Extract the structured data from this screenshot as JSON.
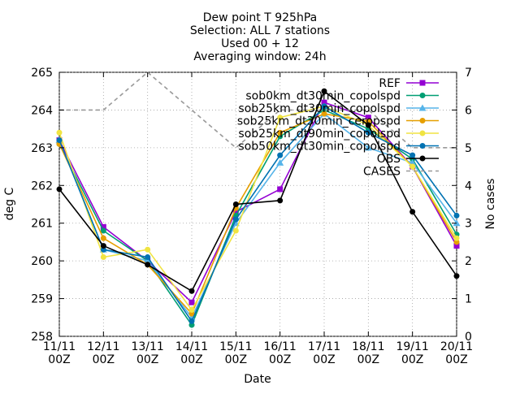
{
  "chart_data": {
    "type": "line",
    "title_lines": [
      "Dew point T 925hPa",
      "Selection: ALL       7 stations",
      "Used 00 + 12",
      "Averaging window: 24h"
    ],
    "xlabel": "Date",
    "ylabel": "deg C",
    "y2label": "No cases",
    "x": [
      [
        "11/11",
        "00Z"
      ],
      [
        "12/11",
        "00Z"
      ],
      [
        "13/11",
        "00Z"
      ],
      [
        "14/11",
        "00Z"
      ],
      [
        "15/11",
        "00Z"
      ],
      [
        "16/11",
        "00Z"
      ],
      [
        "17/11",
        "00Z"
      ],
      [
        "18/11",
        "00Z"
      ],
      [
        "19/11",
        "00Z"
      ],
      [
        "20/11",
        "00Z"
      ]
    ],
    "yticks": [
      "258",
      "259",
      "260",
      "261",
      "262",
      "263",
      "264",
      "265"
    ],
    "ylim": [
      258,
      265
    ],
    "y2ticks": [
      "0",
      "1",
      "2",
      "3",
      "4",
      "5",
      "6",
      "7"
    ],
    "y2lim": [
      0,
      7
    ],
    "legend_position": "top-right",
    "series": [
      {
        "name": "REF",
        "color": "#9400d3",
        "marker": "square",
        "axis": "y",
        "values": [
          263.2,
          260.9,
          260.0,
          258.9,
          261.3,
          261.9,
          264.2,
          263.8,
          262.5,
          260.4
        ]
      },
      {
        "name": "sob0km_dt30min_copolspd",
        "color": "#009e73",
        "marker": "circle",
        "axis": "y",
        "values": [
          263.1,
          260.8,
          260.0,
          258.3,
          261.2,
          263.3,
          264.0,
          263.5,
          262.7,
          260.7
        ]
      },
      {
        "name": "sob25km_dt30min_copolspd",
        "color": "#56b4e9",
        "marker": "triangle",
        "axis": "y",
        "values": [
          263.2,
          260.3,
          260.0,
          258.5,
          261.0,
          262.6,
          263.9,
          263.0,
          262.6,
          261.0
        ]
      },
      {
        "name": "sob25km_dt30min_ceropspd",
        "color": "#e69f00",
        "marker": "circle",
        "axis": "y",
        "values": [
          263.1,
          260.6,
          259.9,
          258.6,
          261.4,
          263.4,
          263.9,
          263.7,
          262.5,
          260.5
        ]
      },
      {
        "name": "sob25km_dt90min_copolspd",
        "color": "#f0e442",
        "marker": "circle",
        "axis": "y",
        "values": [
          263.4,
          260.1,
          260.3,
          258.7,
          260.8,
          263.8,
          264.1,
          263.6,
          262.5,
          260.6
        ]
      },
      {
        "name": "sob50km_dt30min_copolspd",
        "color": "#0072b2",
        "marker": "circle",
        "axis": "y",
        "values": [
          263.2,
          260.3,
          260.1,
          258.4,
          261.1,
          262.8,
          264.1,
          263.4,
          262.8,
          261.2
        ]
      },
      {
        "name": "OBS",
        "color": "#000000",
        "marker": "circle",
        "axis": "y",
        "values": [
          261.9,
          260.4,
          259.9,
          259.2,
          261.5,
          261.6,
          264.5,
          263.6,
          261.3,
          259.6
        ]
      },
      {
        "name": "CASES",
        "color": "#999999",
        "marker": "none",
        "dashed": true,
        "axis": "y2",
        "values": [
          6,
          6,
          7,
          6,
          5,
          6,
          6,
          6,
          5,
          5
        ]
      }
    ]
  }
}
